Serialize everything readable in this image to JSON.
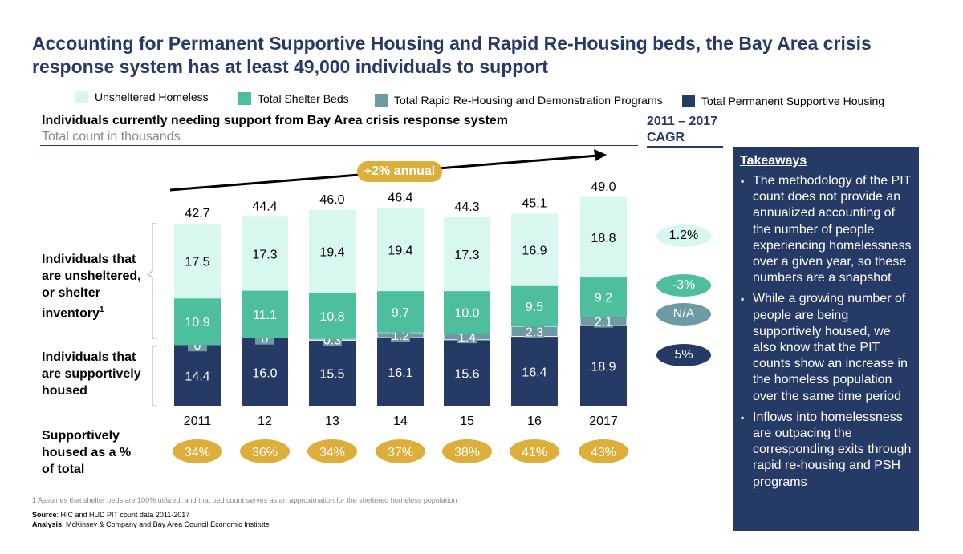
{
  "title": "Accounting for Permanent Supportive Housing and Rapid Re-Housing beds, the Bay Area crisis response system has at least 49,000 individuals to support",
  "legend": [
    {
      "label": "Unsheltered Homeless",
      "color": "#d8f7ef"
    },
    {
      "label": "Total Shelter Beds",
      "color": "#4dbf9c"
    },
    {
      "label": "Total Rapid Re-Housing and Demonstration Programs",
      "color": "#6d9aa3"
    },
    {
      "label": "Total Permanent Supportive Housing",
      "color": "#263a66"
    }
  ],
  "subtitle": "Individuals currently needing support from Bay Area crisis response system",
  "units": "Total count in thousands",
  "cagr_header": "2011 – 2017 CAGR",
  "row_labels": {
    "unsheltered": "Individuals that are unsheltered, or shelter inventory",
    "footnote_mark": "1",
    "housed": "Individuals that are supportively housed",
    "pct": "Supportively housed as a % of total"
  },
  "growth_label": "+2% annual",
  "chart_data": {
    "type": "bar",
    "stacked": true,
    "categories": [
      "2011",
      "12",
      "13",
      "14",
      "15",
      "16",
      "2017"
    ],
    "series": [
      {
        "name": "Total Permanent Supportive Housing",
        "values": [
          14.4,
          16.0,
          15.5,
          16.1,
          15.6,
          16.4,
          18.9
        ],
        "labels": [
          "14.4",
          "16.0",
          "15.5",
          "16.1",
          "15.6",
          "16.4",
          "18.9"
        ]
      },
      {
        "name": "Total Rapid Re-Housing and Demonstration Programs",
        "values": [
          0,
          0,
          0.3,
          1.2,
          1.4,
          2.3,
          2.1
        ],
        "labels": [
          "0",
          "0",
          "0.3",
          "1.2",
          "1.4",
          "2.3",
          "2.1"
        ]
      },
      {
        "name": "Total Shelter Beds",
        "values": [
          10.9,
          11.1,
          10.8,
          9.7,
          10.0,
          9.5,
          9.2
        ],
        "labels": [
          "10.9",
          "11.1",
          "10.8",
          "9.7",
          "10.0",
          "9.5",
          "9.2"
        ]
      },
      {
        "name": "Unsheltered Homeless",
        "values": [
          17.5,
          17.3,
          19.4,
          19.4,
          17.3,
          16.9,
          18.8
        ],
        "labels": [
          "17.5",
          "17.3",
          "19.4",
          "19.4",
          "17.3",
          "16.9",
          "18.8"
        ]
      }
    ],
    "totals": [
      "42.7",
      "44.4",
      "46.0",
      "46.4",
      "44.3",
      "45.1",
      "49.0"
    ],
    "pct_housed": [
      "34%",
      "36%",
      "34%",
      "37%",
      "38%",
      "41%",
      "43%"
    ],
    "cagr": [
      {
        "value": "1.2%",
        "color": "#d8f7ef"
      },
      {
        "value": "-3%",
        "color": "#4dbf9c"
      },
      {
        "value": "N/A",
        "color": "#6d9aa3"
      },
      {
        "value": "5%",
        "color": "#263a66"
      }
    ]
  },
  "takeaways": {
    "heading": "Takeaways",
    "items": [
      "The methodology of the PIT count does not provide an annualized accounting of the number of people experiencing homelessness over a given year, so these numbers are a snapshot",
      "While a growing number of people are being supportively housed, we also know that the PIT counts show an increase in the homeless population over the same time period",
      "Inflows into homelessness are outpacing the corresponding exits through rapid re-housing and PSH programs"
    ]
  },
  "footnote": "1 Assumes that shelter beds are 100% utilized, and that bed count serves as an approximation for the sheltered homeless population",
  "source_label": "Source",
  "source": ": HIC and HUD PIT count data 2011-2017",
  "analysis_label": "Analysis",
  "analysis": ": McKinsey & Company and Bay Area Council Economic Institute"
}
